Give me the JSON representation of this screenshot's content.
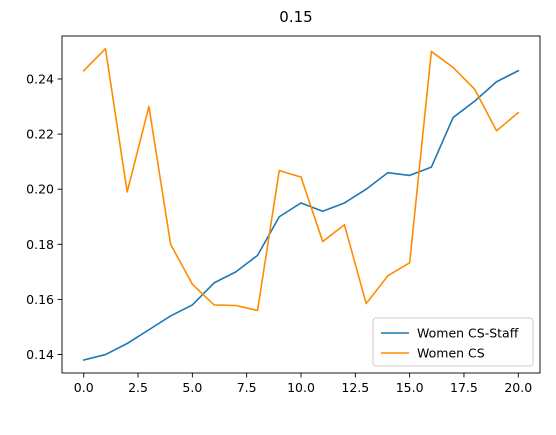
{
  "chart_data": {
    "type": "line",
    "title": "0.15",
    "xlabel": "",
    "ylabel": "",
    "xlim": [
      -1,
      21
    ],
    "ylim": [
      0.1333,
      0.2556
    ],
    "x_ticks": [
      0.0,
      2.5,
      5.0,
      7.5,
      10.0,
      12.5,
      15.0,
      17.5,
      20.0
    ],
    "x_tick_labels": [
      "0.0",
      "2.5",
      "5.0",
      "7.5",
      "10.0",
      "12.5",
      "15.0",
      "17.5",
      "20.0"
    ],
    "y_ticks": [
      0.14,
      0.16,
      0.18,
      0.2,
      0.22,
      0.24
    ],
    "y_tick_labels": [
      "0.14",
      "0.16",
      "0.18",
      "0.20",
      "0.22",
      "0.24"
    ],
    "grid": false,
    "legend_position": "bottom-right",
    "x": [
      0,
      1,
      2,
      3,
      4,
      5,
      6,
      7,
      8,
      9,
      10,
      11,
      12,
      13,
      14,
      15,
      16,
      17,
      18,
      19,
      20
    ],
    "series": [
      {
        "name": "Women CS-Staff",
        "color": "#1f77b4",
        "values": [
          0.138,
          0.14,
          0.144,
          0.149,
          0.154,
          0.158,
          0.166,
          0.17,
          0.176,
          0.19,
          0.195,
          0.192,
          0.195,
          0.2,
          0.206,
          0.205,
          0.208,
          0.226,
          0.232,
          0.239,
          0.243
        ]
      },
      {
        "name": "Women CS",
        "color": "#ff8c00",
        "values": [
          0.243,
          0.251,
          0.199,
          0.23,
          0.18,
          0.1655,
          0.158,
          0.1578,
          0.156,
          0.2068,
          0.2044,
          0.181,
          0.1871,
          0.1585,
          0.1686,
          0.1733,
          0.25,
          0.2442,
          0.2362,
          0.2212,
          0.2278
        ]
      }
    ]
  }
}
